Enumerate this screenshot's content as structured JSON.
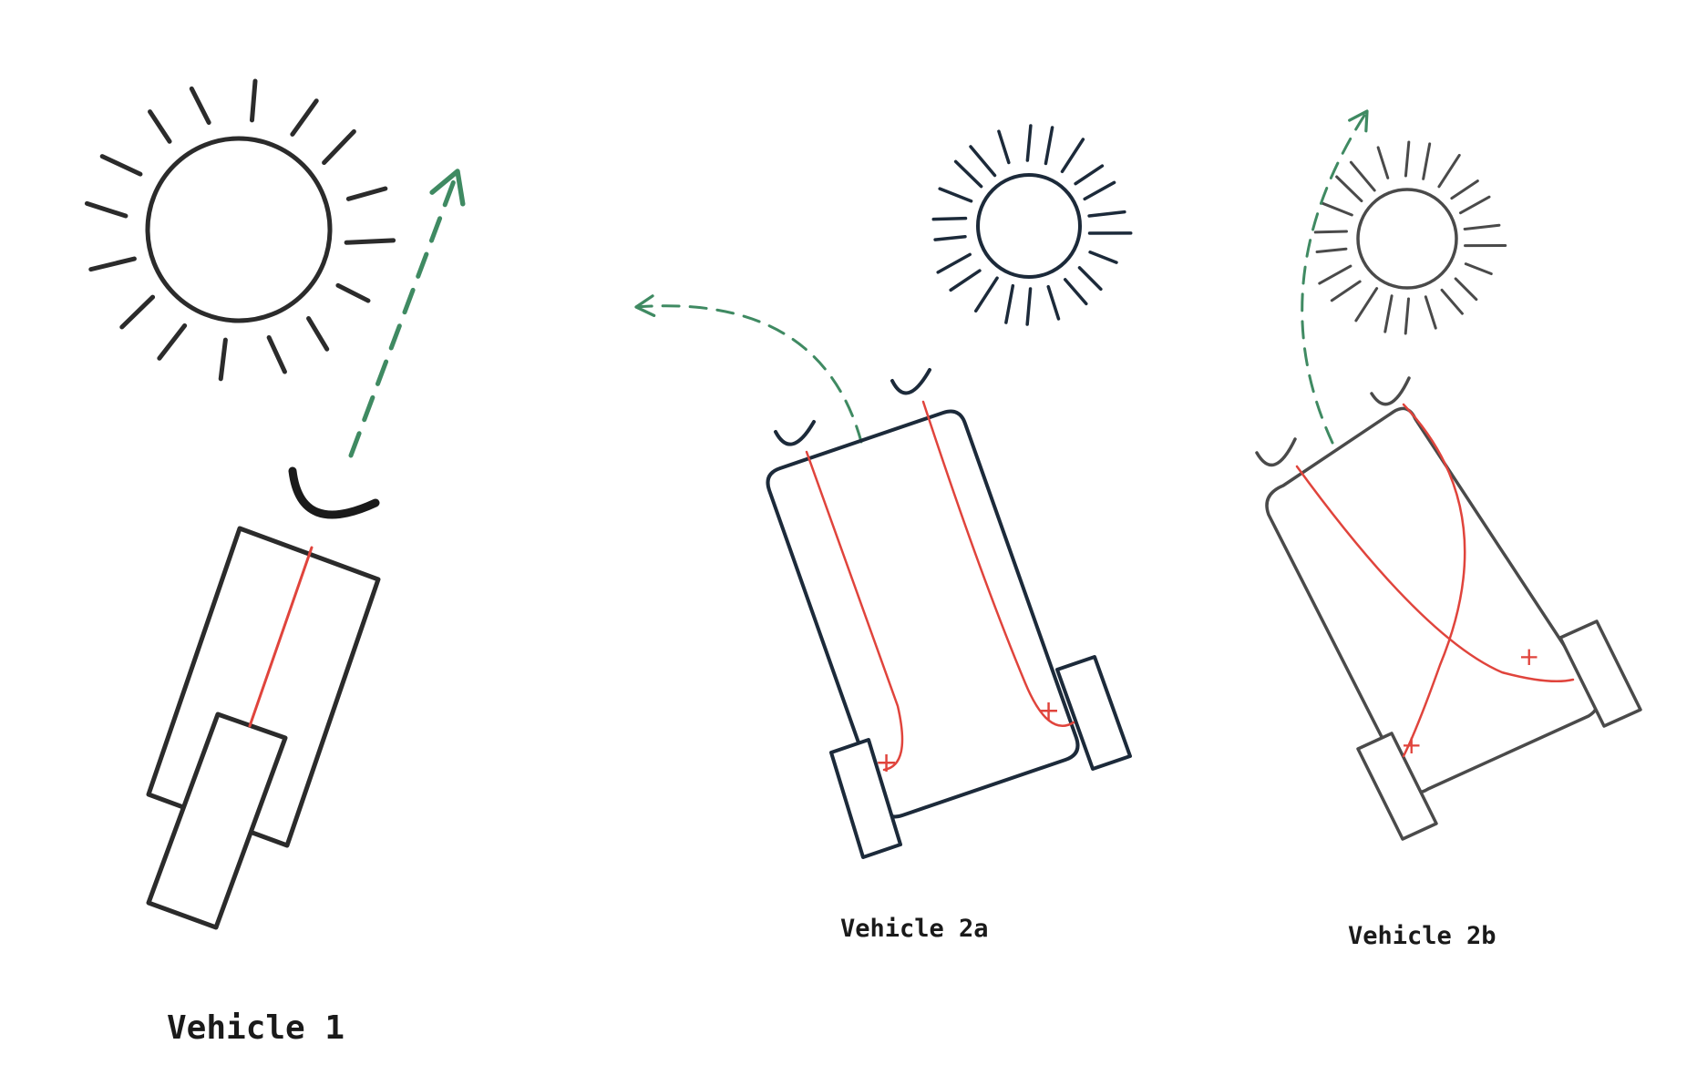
{
  "labels": {
    "vehicle_1": "Vehicle 1",
    "vehicle_2a": "Vehicle 2a",
    "vehicle_2b": "Vehicle 2b"
  },
  "wiring": {
    "vehicle_2a": "uncrossed",
    "vehicle_2b": "crossed"
  },
  "connection_signs": {
    "plus": "+"
  },
  "colors": {
    "outline": "#2b2b2b",
    "outline_2a": "#1c2a3a",
    "wire": "#e0443c",
    "trajectory": "#3f8a62"
  },
  "icons": {
    "sun": "sun-icon",
    "sensor": "sensor-icon",
    "wheel": "wheel-icon",
    "path": "dashed-arrow-icon"
  }
}
